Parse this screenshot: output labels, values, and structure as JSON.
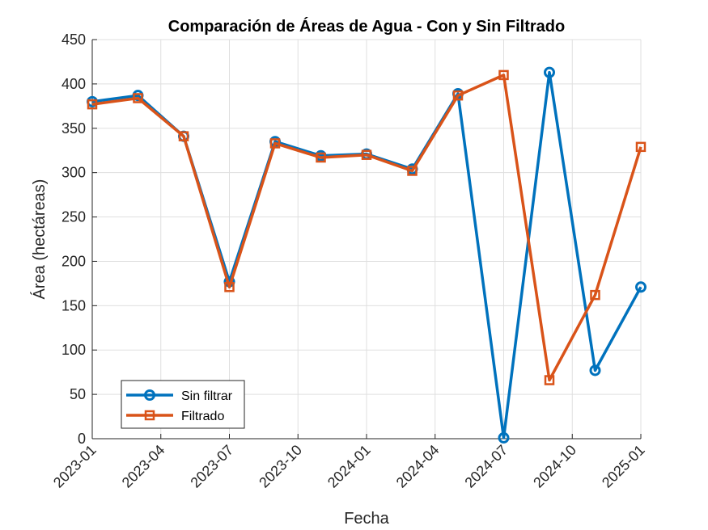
{
  "chart_data": {
    "type": "line",
    "title": "Comparación de Áreas de Agua - Con y Sin Filtrado",
    "xlabel": "Fecha",
    "ylabel": "Área (hectáreas)",
    "x": [
      "2023-01",
      "2023-03",
      "2023-05",
      "2023-07",
      "2023-09",
      "2023-11",
      "2024-01",
      "2024-03",
      "2024-05",
      "2024-07",
      "2024-09",
      "2024-11",
      "2025-01"
    ],
    "x_ticks": [
      "2023-01",
      "2023-04",
      "2023-07",
      "2023-10",
      "2024-01",
      "2024-04",
      "2024-07",
      "2024-10",
      "2025-01"
    ],
    "ylim": [
      0,
      450
    ],
    "y_ticks": [
      0,
      50,
      100,
      150,
      200,
      250,
      300,
      350,
      400,
      450
    ],
    "grid": true,
    "legend_position": "bottom-left",
    "series": [
      {
        "name": "Sin filtrar",
        "color": "#0072BD",
        "marker": "circle",
        "values": [
          380,
          387,
          341,
          177,
          335,
          319,
          321,
          304,
          389,
          1,
          413,
          77,
          171
        ]
      },
      {
        "name": "Filtrado",
        "color": "#D95319",
        "marker": "square",
        "values": [
          377,
          384,
          341,
          171,
          333,
          317,
          320,
          302,
          387,
          410,
          66,
          162,
          329
        ]
      }
    ]
  }
}
